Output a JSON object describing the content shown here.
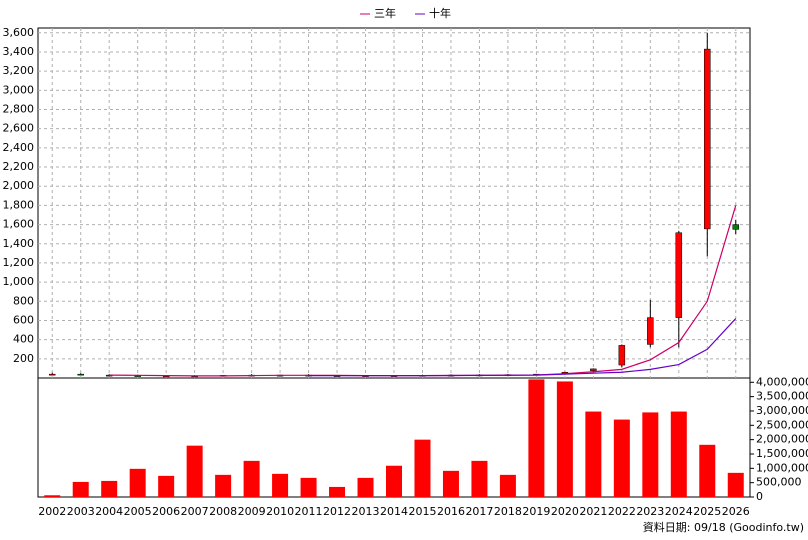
{
  "chart_data": [
    {
      "type": "candlestick",
      "legend_position": "top",
      "open": [
        40,
        40,
        30,
        25,
        20,
        22,
        20,
        30,
        28,
        30,
        25,
        20,
        22,
        25,
        28,
        30,
        32,
        30,
        45,
        75,
        135,
        350,
        630,
        1555,
        1600
      ],
      "high": [
        55,
        50,
        40,
        35,
        28,
        30,
        28,
        40,
        35,
        40,
        32,
        28,
        30,
        35,
        38,
        40,
        42,
        40,
        65,
        100,
        350,
        815,
        1535,
        3600,
        1650
      ],
      "low": [
        30,
        30,
        25,
        18,
        15,
        18,
        15,
        22,
        20,
        22,
        18,
        15,
        18,
        20,
        22,
        25,
        28,
        25,
        35,
        60,
        110,
        320,
        320,
        1270,
        1500
      ],
      "close": [
        40,
        35,
        28,
        22,
        22,
        20,
        28,
        30,
        30,
        25,
        22,
        25,
        25,
        28,
        30,
        32,
        35,
        40,
        60,
        95,
        340,
        630,
        1515,
        3430,
        1550
      ],
      "series": [
        {
          "name": "三年",
          "color": "#cc0066",
          "values": [
            null,
            null,
            30,
            28,
            25,
            22,
            22,
            25,
            28,
            28,
            27,
            25,
            24,
            25,
            26,
            28,
            30,
            32,
            45,
            65,
            90,
            190,
            370,
            800,
            1800
          ]
        },
        {
          "name": "十年",
          "color": "#6600cc",
          "values": [
            null,
            null,
            null,
            null,
            null,
            null,
            null,
            null,
            null,
            25,
            25,
            24,
            24,
            25,
            26,
            27,
            28,
            30,
            40,
            50,
            60,
            90,
            140,
            300,
            620
          ]
        }
      ],
      "up_color": "#ff0000",
      "down_color": "#008000",
      "ylim": [
        0,
        3650
      ],
      "yticks": [
        200,
        400,
        600,
        800,
        {
          "value": 1000,
          "label": "1,000"
        },
        {
          "value": 1200,
          "label": "1,200"
        },
        {
          "value": 1400,
          "label": "1,400"
        },
        {
          "value": 1600,
          "label": "1,600"
        },
        {
          "value": 1800,
          "label": "1,800"
        },
        {
          "value": 2000,
          "label": "2,000"
        },
        {
          "value": 2200,
          "label": "2,200"
        },
        {
          "value": 2400,
          "label": "2,400"
        },
        {
          "value": 2600,
          "label": "2,600"
        },
        {
          "value": 2800,
          "label": "2,800"
        },
        {
          "value": 3000,
          "label": "3,000"
        },
        {
          "value": 3200,
          "label": "3,200"
        },
        {
          "value": 3400,
          "label": "3,400"
        },
        {
          "value": 3600,
          "label": "3,600"
        }
      ],
      "grid": true
    },
    {
      "type": "bar",
      "color": "#ff0000",
      "categories": [
        "2002",
        "2003",
        "2004",
        "2005",
        "2006",
        "2007",
        "2008",
        "2009",
        "2010",
        "2011",
        "2012",
        "2013",
        "2014",
        "2015",
        "2016",
        "2017",
        "2018",
        "2019",
        "2020",
        "2021",
        "2022",
        "2023",
        "2024",
        "2025",
        "2026"
      ],
      "values": [
        60000,
        526000,
        561000,
        982000,
        737000,
        1790000,
        772000,
        1260000,
        807000,
        667000,
        351000,
        667000,
        1090000,
        2000000,
        912000,
        1260000,
        772000,
        4100000,
        4030000,
        2980000,
        2700000,
        2950000,
        2980000,
        1820000,
        842000
      ],
      "ylim": [
        0,
        4150000
      ],
      "yticks": [
        0,
        {
          "value": 500000,
          "label": "500,000"
        },
        {
          "value": 1000000,
          "label": "1,000,000"
        },
        {
          "value": 1500000,
          "label": "1,500,000"
        },
        {
          "value": 2000000,
          "label": "2,000,000"
        },
        {
          "value": 2500000,
          "label": "2,500,000"
        },
        {
          "value": 3000000,
          "label": "3,000,000"
        },
        {
          "value": 3500000,
          "label": "3,500,000"
        },
        {
          "value": 4000000,
          "label": "4,000,000"
        }
      ]
    }
  ],
  "footnote": "資料日期: 09/18 (Goodinfo.tw)"
}
